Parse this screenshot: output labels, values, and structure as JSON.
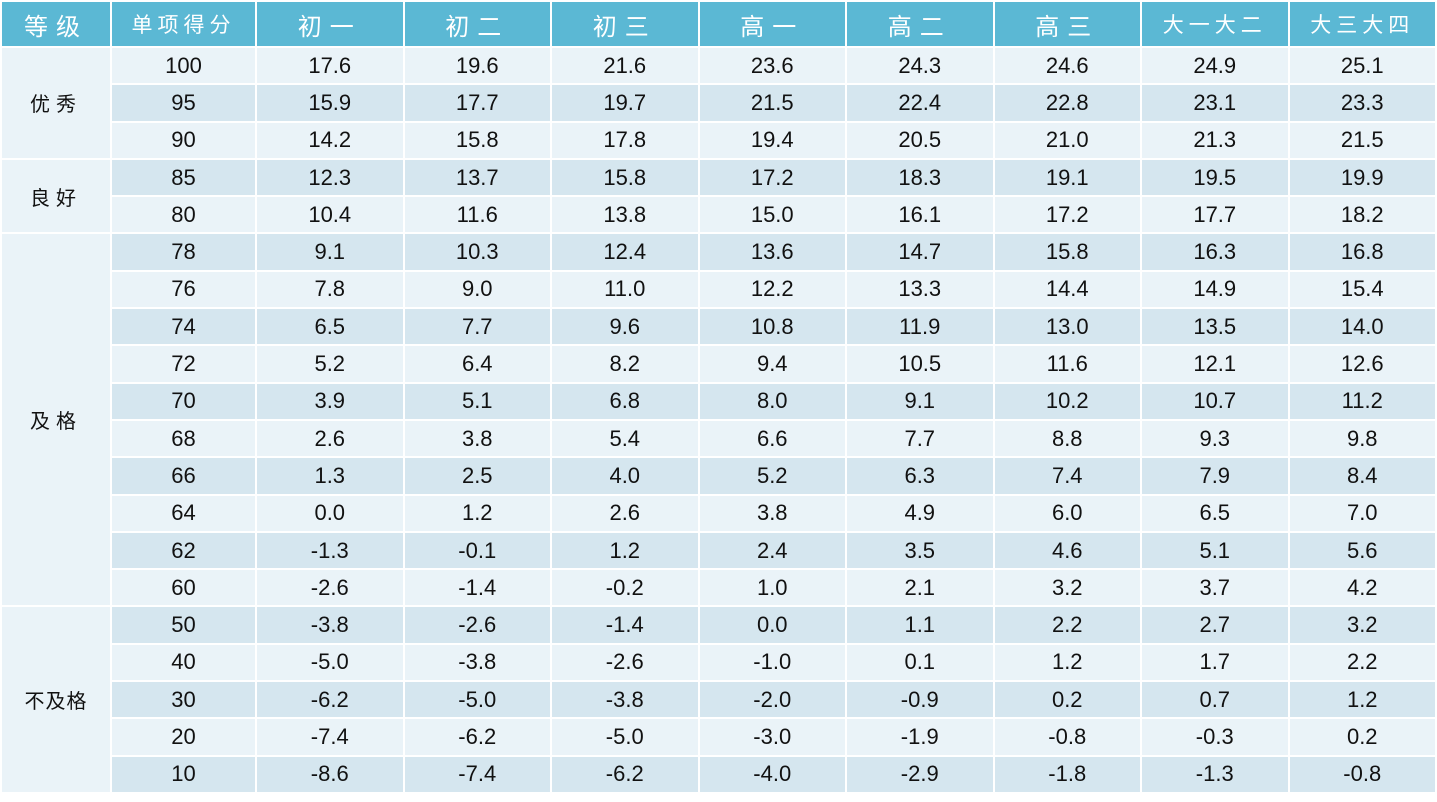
{
  "table": {
    "header": [
      "等级",
      "单项得分",
      "初一",
      "初二",
      "初三",
      "高一",
      "高二",
      "高三",
      "大一大二",
      "大三大四"
    ],
    "groups": [
      {
        "label": "优秀",
        "rows": [
          [
            "100",
            "17.6",
            "19.6",
            "21.6",
            "23.6",
            "24.3",
            "24.6",
            "24.9",
            "25.1"
          ],
          [
            "95",
            "15.9",
            "17.7",
            "19.7",
            "21.5",
            "22.4",
            "22.8",
            "23.1",
            "23.3"
          ],
          [
            "90",
            "14.2",
            "15.8",
            "17.8",
            "19.4",
            "20.5",
            "21.0",
            "21.3",
            "21.5"
          ]
        ]
      },
      {
        "label": "良好",
        "rows": [
          [
            "85",
            "12.3",
            "13.7",
            "15.8",
            "17.2",
            "18.3",
            "19.1",
            "19.5",
            "19.9"
          ],
          [
            "80",
            "10.4",
            "11.6",
            "13.8",
            "15.0",
            "16.1",
            "17.2",
            "17.7",
            "18.2"
          ]
        ]
      },
      {
        "label": "及格",
        "rows": [
          [
            "78",
            "9.1",
            "10.3",
            "12.4",
            "13.6",
            "14.7",
            "15.8",
            "16.3",
            "16.8"
          ],
          [
            "76",
            "7.8",
            "9.0",
            "11.0",
            "12.2",
            "13.3",
            "14.4",
            "14.9",
            "15.4"
          ],
          [
            "74",
            "6.5",
            "7.7",
            "9.6",
            "10.8",
            "11.9",
            "13.0",
            "13.5",
            "14.0"
          ],
          [
            "72",
            "5.2",
            "6.4",
            "8.2",
            "9.4",
            "10.5",
            "11.6",
            "12.1",
            "12.6"
          ],
          [
            "70",
            "3.9",
            "5.1",
            "6.8",
            "8.0",
            "9.1",
            "10.2",
            "10.7",
            "11.2"
          ],
          [
            "68",
            "2.6",
            "3.8",
            "5.4",
            "6.6",
            "7.7",
            "8.8",
            "9.3",
            "9.8"
          ],
          [
            "66",
            "1.3",
            "2.5",
            "4.0",
            "5.2",
            "6.3",
            "7.4",
            "7.9",
            "8.4"
          ],
          [
            "64",
            "0.0",
            "1.2",
            "2.6",
            "3.8",
            "4.9",
            "6.0",
            "6.5",
            "7.0"
          ],
          [
            "62",
            "-1.3",
            "-0.1",
            "1.2",
            "2.4",
            "3.5",
            "4.6",
            "5.1",
            "5.6"
          ],
          [
            "60",
            "-2.6",
            "-1.4",
            "-0.2",
            "1.0",
            "2.1",
            "3.2",
            "3.7",
            "4.2"
          ]
        ]
      },
      {
        "label": "不及格",
        "rows": [
          [
            "50",
            "-3.8",
            "-2.6",
            "-1.4",
            "0.0",
            "1.1",
            "2.2",
            "2.7",
            "3.2"
          ],
          [
            "40",
            "-5.0",
            "-3.8",
            "-2.6",
            "-1.0",
            "0.1",
            "1.2",
            "1.7",
            "2.2"
          ],
          [
            "30",
            "-6.2",
            "-5.0",
            "-3.8",
            "-2.0",
            "-0.9",
            "0.2",
            "0.7",
            "1.2"
          ],
          [
            "20",
            "-7.4",
            "-6.2",
            "-5.0",
            "-3.0",
            "-1.9",
            "-0.8",
            "-0.3",
            "0.2"
          ],
          [
            "10",
            "-8.6",
            "-7.4",
            "-6.2",
            "-4.0",
            "-2.9",
            "-1.8",
            "-1.3",
            "-0.8"
          ]
        ]
      }
    ]
  }
}
